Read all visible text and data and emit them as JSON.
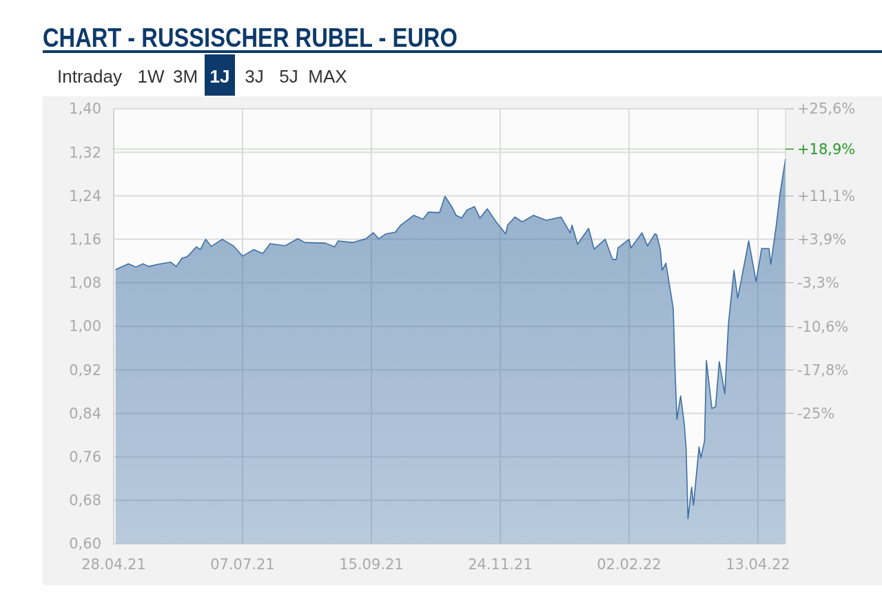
{
  "chart_data": {
    "type": "area",
    "title": "CHART - RUSSISCHER RUBEL - EURO",
    "annotations": [
      "Intraday",
      "1W",
      "3M",
      "1J",
      "3J",
      "5J",
      "MAX"
    ],
    "x": [
      "2021-04-29",
      "2021-05-06",
      "2021-05-10",
      "2021-05-14",
      "2021-05-17",
      "2021-05-22",
      "2021-05-29",
      "2021-06-01",
      "2021-06-04",
      "2021-06-07",
      "2021-06-12",
      "2021-06-14",
      "2021-06-17",
      "2021-06-20",
      "2021-06-26",
      "2021-07-02",
      "2021-07-07",
      "2021-07-13",
      "2021-07-18",
      "2021-07-22",
      "2021-07-30",
      "2021-08-06",
      "2021-08-10",
      "2021-08-21",
      "2021-08-26",
      "2021-08-28",
      "2021-09-05",
      "2021-09-12",
      "2021-09-16",
      "2021-09-19",
      "2021-09-23",
      "2021-09-28",
      "2021-10-01",
      "2021-10-08",
      "2021-10-13",
      "2021-10-16",
      "2021-10-22",
      "2021-10-25",
      "2021-10-29",
      "2021-10-31",
      "2021-11-03",
      "2021-11-06",
      "2021-11-10",
      "2021-11-13",
      "2021-11-17",
      "2021-11-22",
      "2021-11-27",
      "2021-11-28",
      "2021-12-02",
      "2021-12-06",
      "2021-12-12",
      "2021-12-19",
      "2021-12-27",
      "2022-01-01",
      "2022-01-02",
      "2022-01-05",
      "2022-01-11",
      "2022-01-14",
      "2022-01-20",
      "2022-01-24",
      "2022-01-26",
      "2022-01-27",
      "2022-02-02",
      "2022-02-03",
      "2022-02-09",
      "2022-02-12",
      "2022-02-16",
      "2022-02-17",
      "2022-02-19",
      "2022-02-20",
      "2022-02-22",
      "2022-02-25",
      "2022-02-26",
      "2022-02-27",
      "2022-02-28",
      "2022-03-02",
      "2022-03-04",
      "2022-03-05",
      "2022-03-06",
      "2022-03-08",
      "2022-03-09",
      "2022-03-12",
      "2022-03-13",
      "2022-03-15",
      "2022-03-16",
      "2022-03-19",
      "2022-03-21",
      "2022-03-23",
      "2022-03-26",
      "2022-03-28",
      "2022-03-31",
      "2022-04-02",
      "2022-04-04",
      "2022-04-08",
      "2022-04-12",
      "2022-04-15",
      "2022-04-19",
      "2022-04-20",
      "2022-04-23",
      "2022-04-25",
      "2022-04-28"
    ],
    "series": [
      {
        "color": "#3d6fa3",
        "values": [
          1.104,
          1.115,
          1.109,
          1.115,
          1.11,
          1.114,
          1.118,
          1.11,
          1.125,
          1.128,
          1.146,
          1.141,
          1.16,
          1.147,
          1.16,
          1.148,
          1.129,
          1.141,
          1.134,
          1.152,
          1.148,
          1.161,
          1.154,
          1.153,
          1.146,
          1.157,
          1.154,
          1.161,
          1.172,
          1.161,
          1.17,
          1.173,
          1.186,
          1.204,
          1.197,
          1.21,
          1.209,
          1.239,
          1.218,
          1.204,
          1.199,
          1.214,
          1.22,
          1.199,
          1.216,
          1.191,
          1.17,
          1.186,
          1.201,
          1.192,
          1.204,
          1.195,
          1.201,
          1.172,
          1.186,
          1.151,
          1.18,
          1.142,
          1.16,
          1.123,
          1.123,
          1.144,
          1.16,
          1.144,
          1.172,
          1.148,
          1.17,
          1.168,
          1.141,
          1.103,
          1.116,
          1.054,
          1.032,
          0.916,
          0.829,
          0.872,
          0.82,
          0.775,
          0.646,
          0.704,
          0.671,
          0.778,
          0.758,
          0.789,
          0.937,
          0.849,
          0.852,
          0.935,
          0.876,
          1.005,
          1.103,
          1.052,
          1.086,
          1.157,
          1.082,
          1.143,
          1.143,
          1.114,
          1.186,
          1.244,
          1.308
        ]
      }
    ],
    "xlim": [
      "2021-04-28",
      "2022-04-28"
    ],
    "xticks": [
      {
        "value": "2021-04-28",
        "label": "28.04.21"
      },
      {
        "value": "2021-07-07",
        "label": "07.07.21"
      },
      {
        "value": "2021-09-15",
        "label": "15.09.21"
      },
      {
        "value": "2021-11-24",
        "label": "24.11.21"
      },
      {
        "value": "2022-02-02",
        "label": "02.02.22"
      },
      {
        "value": "2022-04-13",
        "label": "13.04.22"
      }
    ],
    "ylim": [
      0.6,
      1.4
    ],
    "yticks": [
      {
        "value": 0.6,
        "label": "0,60"
      },
      {
        "value": 0.68,
        "label": "0,68"
      },
      {
        "value": 0.76,
        "label": "0,76"
      },
      {
        "value": 0.84,
        "label": "0,84"
      },
      {
        "value": 0.92,
        "label": "0,92"
      },
      {
        "value": 1.0,
        "label": "1,00"
      },
      {
        "value": 1.08,
        "label": "1,08"
      },
      {
        "value": 1.16,
        "label": "1,16"
      },
      {
        "value": 1.24,
        "label": "1,24"
      },
      {
        "value": 1.32,
        "label": "1,32"
      },
      {
        "value": 1.4,
        "label": "1,40"
      }
    ],
    "y2lim": [
      -46.7,
      25.6
    ],
    "y2ticks": [
      {
        "value": 25.6,
        "label": "+25,6%"
      },
      {
        "value": 11.1,
        "label": "+11,1%"
      },
      {
        "value": 3.9,
        "label": "+3,9%"
      },
      {
        "value": -3.3,
        "label": "-3,3%"
      },
      {
        "value": -10.6,
        "label": "-10,6%"
      },
      {
        "value": -17.8,
        "label": "-17,8%"
      },
      {
        "value": -25,
        "label": "-25%"
      }
    ],
    "ref_lines": [
      {
        "axis": "y2",
        "value": 18.9,
        "label": "+18,9%",
        "color": "#2a9a2a"
      }
    ],
    "grid": true
  }
}
